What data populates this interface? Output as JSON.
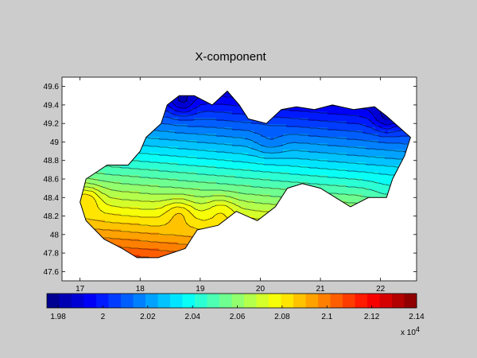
{
  "chart_data": {
    "type": "heatmap",
    "title": "X-component",
    "xlabel": "",
    "ylabel": "",
    "xlim": [
      16.7,
      22.6
    ],
    "ylim": [
      47.5,
      49.7
    ],
    "x_ticks": [
      17,
      18,
      19,
      20,
      21,
      22
    ],
    "x_tick_labels": [
      "17",
      "18",
      "19",
      "20",
      "21",
      "22"
    ],
    "y_ticks": [
      47.6,
      47.8,
      48,
      48.2,
      48.4,
      48.6,
      48.8,
      49,
      49.2,
      49.4,
      49.6
    ],
    "y_tick_labels": [
      "47.6",
      "47.8",
      "48",
      "48.2",
      "48.4",
      "48.6",
      "48.8",
      "49",
      "49.2",
      "49.4",
      "49.6"
    ],
    "colorbar": {
      "colormap": "jet",
      "range": [
        1.975,
        2.14
      ],
      "ticks": [
        1.98,
        2,
        2.02,
        2.04,
        2.06,
        2.08,
        2.1,
        2.12,
        2.14
      ],
      "tick_labels": [
        "1.98",
        "2",
        "2.02",
        "2.04",
        "2.06",
        "2.08",
        "2.1",
        "2.12",
        "2.14"
      ],
      "multiplier_base": "x 10",
      "multiplier_exp": "4",
      "levels": 30
    },
    "grid": false,
    "region_boundary": [
      [
        17.1,
        48.15
      ],
      [
        17.0,
        48.35
      ],
      [
        17.1,
        48.6
      ],
      [
        17.45,
        48.75
      ],
      [
        17.8,
        48.75
      ],
      [
        18.0,
        48.9
      ],
      [
        18.1,
        49.05
      ],
      [
        18.35,
        49.2
      ],
      [
        18.45,
        49.4
      ],
      [
        18.65,
        49.5
      ],
      [
        18.9,
        49.5
      ],
      [
        19.2,
        49.4
      ],
      [
        19.45,
        49.55
      ],
      [
        19.65,
        49.4
      ],
      [
        19.8,
        49.25
      ],
      [
        20.1,
        49.2
      ],
      [
        20.35,
        49.35
      ],
      [
        20.6,
        49.38
      ],
      [
        20.9,
        49.35
      ],
      [
        21.2,
        49.4
      ],
      [
        21.55,
        49.35
      ],
      [
        21.9,
        49.38
      ],
      [
        22.1,
        49.28
      ],
      [
        22.5,
        49.05
      ],
      [
        22.4,
        48.85
      ],
      [
        22.2,
        48.6
      ],
      [
        22.1,
        48.4
      ],
      [
        21.8,
        48.4
      ],
      [
        21.5,
        48.3
      ],
      [
        21.0,
        48.5
      ],
      [
        20.7,
        48.55
      ],
      [
        20.45,
        48.5
      ],
      [
        20.25,
        48.3
      ],
      [
        19.95,
        48.15
      ],
      [
        19.6,
        48.25
      ],
      [
        19.3,
        48.1
      ],
      [
        18.95,
        48.05
      ],
      [
        18.85,
        47.95
      ],
      [
        18.75,
        47.85
      ],
      [
        18.3,
        47.75
      ],
      [
        17.95,
        47.75
      ],
      [
        17.7,
        47.85
      ],
      [
        17.4,
        47.95
      ],
      [
        17.25,
        48.05
      ]
    ],
    "hotspots": [
      {
        "lon": 17.1,
        "lat": 48.4,
        "value": 2.092
      },
      {
        "lon": 18.65,
        "lat": 48.25,
        "value": 2.085
      },
      {
        "lon": 19.35,
        "lat": 48.28,
        "value": 2.08
      },
      {
        "lon": 20.15,
        "lat": 48.98,
        "value": 2.05
      },
      {
        "lon": 22.1,
        "lat": 48.45,
        "value": 2.055
      }
    ],
    "lows": [
      {
        "lon": 18.7,
        "lat": 49.42,
        "value": 1.985
      },
      {
        "lon": 22.1,
        "lat": 49.25,
        "value": 1.99
      }
    ]
  }
}
